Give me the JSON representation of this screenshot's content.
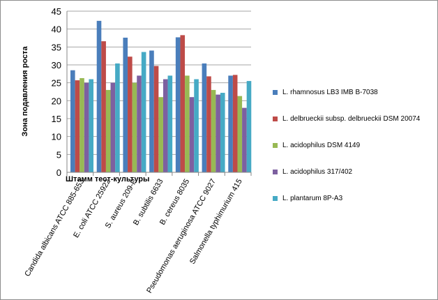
{
  "chart_data": {
    "type": "bar",
    "title": "",
    "xlabel": "Штамм тест-культуры",
    "ylabel": "Зона подавления роста",
    "ylim": [
      0,
      45
    ],
    "yticks": [
      0,
      5,
      10,
      15,
      20,
      25,
      30,
      35,
      40,
      45
    ],
    "grid": true,
    "legend_position": "right",
    "categories": [
      "Candida albicans ATCC 885-653",
      "E. coli ATCC 25922",
      "S. aureus 209-P",
      "B. subtilis 6633",
      "B. cereus 8035",
      "Pseudomonas aeruginosa ATCC 9027",
      "Salmonella typhimurium 415"
    ],
    "series": [
      {
        "name": "L. rhamnosus LB3 IMB B-7038",
        "color": "#4a7ebb",
        "values": [
          28.5,
          42.3,
          37.6,
          34.0,
          37.7,
          30.4,
          27.0
        ]
      },
      {
        "name": "L. delbrueckii subsp. delbrueckii DSM 20074",
        "color": "#be4b48",
        "values": [
          25.7,
          36.6,
          32.3,
          29.7,
          38.3,
          26.8,
          27.2
        ]
      },
      {
        "name": "L. acidophilus DSM 4149",
        "color": "#98b954",
        "values": [
          26.3,
          23.0,
          25.0,
          21.0,
          27.0,
          23.0,
          21.3
        ]
      },
      {
        "name": "L. acidophilus 317/402",
        "color": "#7d60a0",
        "values": [
          25.0,
          25.0,
          27.0,
          26.0,
          21.0,
          21.7,
          18.0
        ]
      },
      {
        "name": "L. plantarum 8P-A3",
        "color": "#46aac5",
        "values": [
          26.0,
          30.4,
          33.6,
          27.0,
          26.0,
          22.2,
          25.5
        ]
      }
    ]
  }
}
